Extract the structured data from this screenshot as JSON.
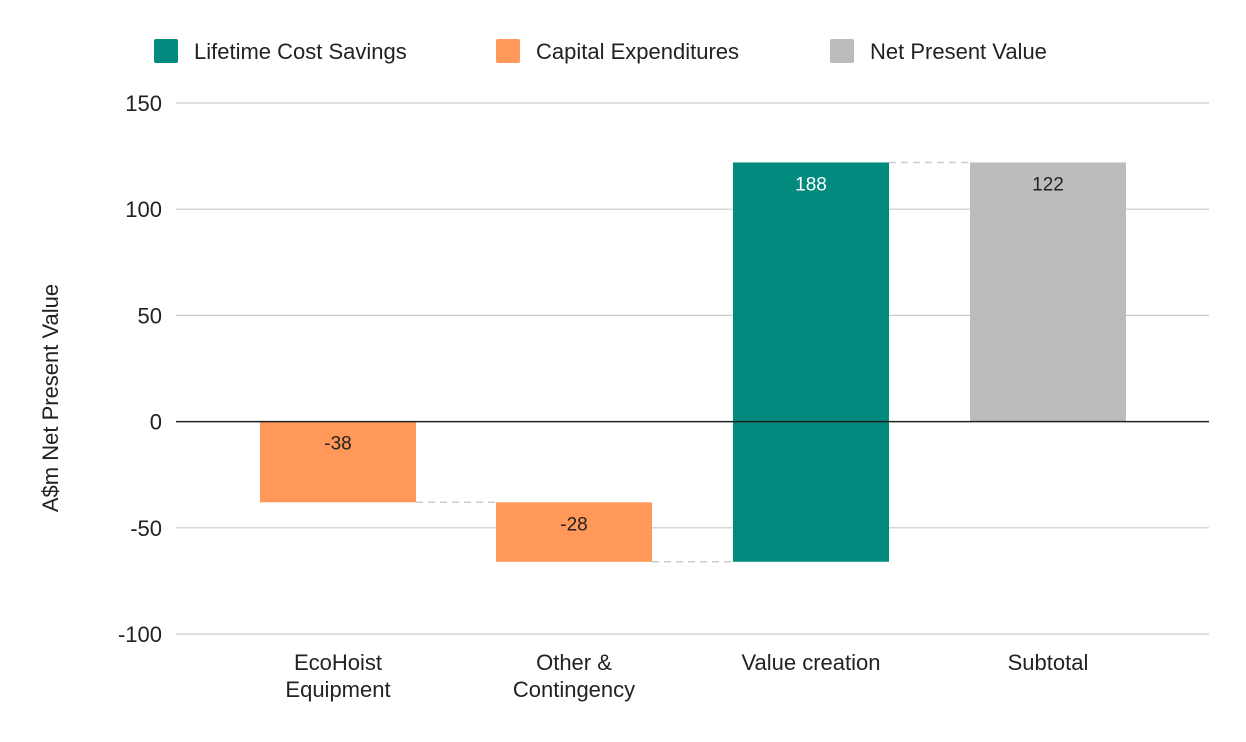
{
  "chart_data": {
    "type": "bar",
    "subtype": "waterfall",
    "title": "",
    "xlabel": "",
    "ylabel": "A$m Net Present Value",
    "ylim": [
      -100,
      150
    ],
    "yticks": [
      150,
      100,
      50,
      0,
      -50,
      -100
    ],
    "grid": true,
    "legend_position": "top",
    "categories": [
      [
        "EcoHoist",
        "Equipment"
      ],
      [
        "Other &",
        "Contingency"
      ],
      [
        "Value creation"
      ],
      [
        "Subtotal"
      ]
    ],
    "legend": [
      {
        "name": "Lifetime Cost Savings",
        "color": "#038a7f"
      },
      {
        "name": "Capital Expenditures",
        "color": "#ff9859"
      },
      {
        "name": "Net Present Value",
        "color": "#bcbcbc"
      }
    ],
    "bars": [
      {
        "category": "EcoHoist Equipment",
        "series": "Capital Expenditures",
        "start": 0,
        "end": -38,
        "label": "-38"
      },
      {
        "category": "Other & Contingency",
        "series": "Capital Expenditures",
        "start": -38,
        "end": -66,
        "label": "-28"
      },
      {
        "category": "Value creation",
        "series": "Lifetime Cost Savings",
        "start": -66,
        "end": 122,
        "label": "188"
      },
      {
        "category": "Subtotal",
        "series": "Net Present Value",
        "start": 0,
        "end": 122,
        "label": "122"
      }
    ]
  }
}
